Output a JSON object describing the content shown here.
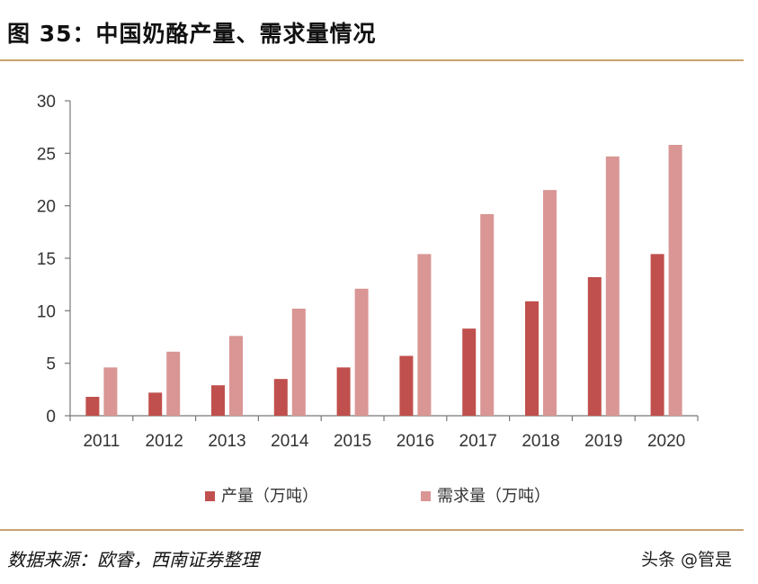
{
  "header": {
    "title": "图 35：中国奶酪产量、需求量情况"
  },
  "footer": {
    "source": "数据来源：欧睿，西南证券整理",
    "watermark": "头条 @管是"
  },
  "colors": {
    "production": "#c0504d",
    "demand": "#d99694",
    "axis": "#777777",
    "rule": "#c8a46e"
  },
  "chart_data": {
    "type": "bar",
    "title": "",
    "xlabel": "",
    "ylabel": "",
    "categories": [
      "2011",
      "2012",
      "2013",
      "2014",
      "2015",
      "2016",
      "2017",
      "2018",
      "2019",
      "2020"
    ],
    "series": [
      {
        "name": "产量（万吨）",
        "values": [
          1.8,
          2.2,
          2.9,
          3.5,
          4.6,
          5.7,
          8.3,
          10.9,
          13.2,
          15.4
        ]
      },
      {
        "name": "需求量（万吨）",
        "values": [
          4.6,
          6.1,
          7.6,
          10.2,
          12.1,
          15.4,
          19.2,
          21.5,
          24.7,
          25.8
        ]
      }
    ],
    "ylim": [
      0,
      30
    ],
    "yticks": [
      "0",
      "5",
      "10",
      "15",
      "20",
      "25",
      "30"
    ],
    "grid": false,
    "legend_position": "bottom"
  }
}
